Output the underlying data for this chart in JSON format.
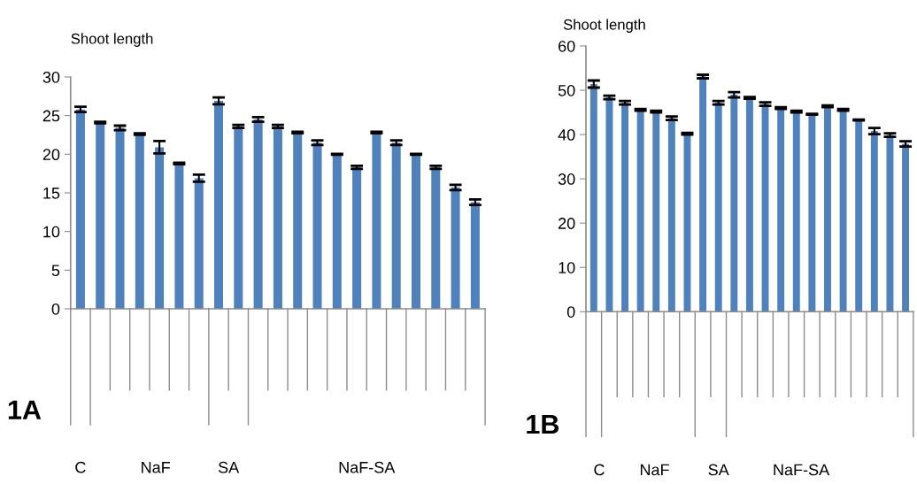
{
  "chart_data": [
    {
      "type": "bar",
      "title": "Shoot length",
      "categories": [
        null,
        null,
        null,
        null,
        null,
        null,
        null,
        null,
        null,
        null,
        null,
        null,
        null,
        null,
        null,
        null,
        null,
        null,
        null,
        null,
        null
      ],
      "color": "#4f81bd",
      "values": [
        25.8,
        24.1,
        23.4,
        22.6,
        20.9,
        18.8,
        16.9,
        26.9,
        23.6,
        24.5,
        23.6,
        22.8,
        21.5,
        20.0,
        18.3,
        22.8,
        21.5,
        20.0,
        18.3,
        15.7,
        13.8
      ],
      "errors": [
        0.35,
        0.1,
        0.3,
        0.1,
        0.8,
        0.1,
        0.45,
        0.45,
        0.2,
        0.3,
        0.2,
        0.1,
        0.3,
        0.05,
        0.2,
        0.1,
        0.3,
        0.05,
        0.2,
        0.35,
        0.35
      ],
      "ylim": [
        0,
        30
      ],
      "yticks": [
        0,
        5,
        10,
        15,
        20,
        25,
        30
      ],
      "grid": false,
      "legend": false,
      "annotations": [
        "1A",
        "C",
        "NaF",
        "SA",
        "NaF-SA"
      ]
    },
    {
      "type": "bar",
      "title": "Shoot length",
      "categories": [
        null,
        null,
        null,
        null,
        null,
        null,
        null,
        null,
        null,
        null,
        null,
        null,
        null,
        null,
        null,
        null,
        null,
        null,
        null,
        null,
        null
      ],
      "color": "#4f81bd",
      "values": [
        51.4,
        48.4,
        47.2,
        45.6,
        45.2,
        43.7,
        40.2,
        53.1,
        47.2,
        49.0,
        48.3,
        46.9,
        46.0,
        45.2,
        44.6,
        46.4,
        45.6,
        43.3,
        40.8,
        39.9,
        37.9
      ],
      "errors": [
        0.8,
        0.4,
        0.4,
        0.2,
        0.2,
        0.4,
        0.2,
        0.4,
        0.4,
        0.6,
        0.2,
        0.4,
        0.2,
        0.2,
        0.1,
        0.2,
        0.2,
        0.1,
        0.7,
        0.4,
        0.6
      ],
      "ylim": [
        0,
        60
      ],
      "yticks": [
        0,
        10,
        20,
        30,
        40,
        50,
        60
      ],
      "grid": false,
      "legend": false,
      "annotations": [
        "1B",
        "C",
        "NaF",
        "SA",
        "NaF-SA"
      ]
    }
  ]
}
